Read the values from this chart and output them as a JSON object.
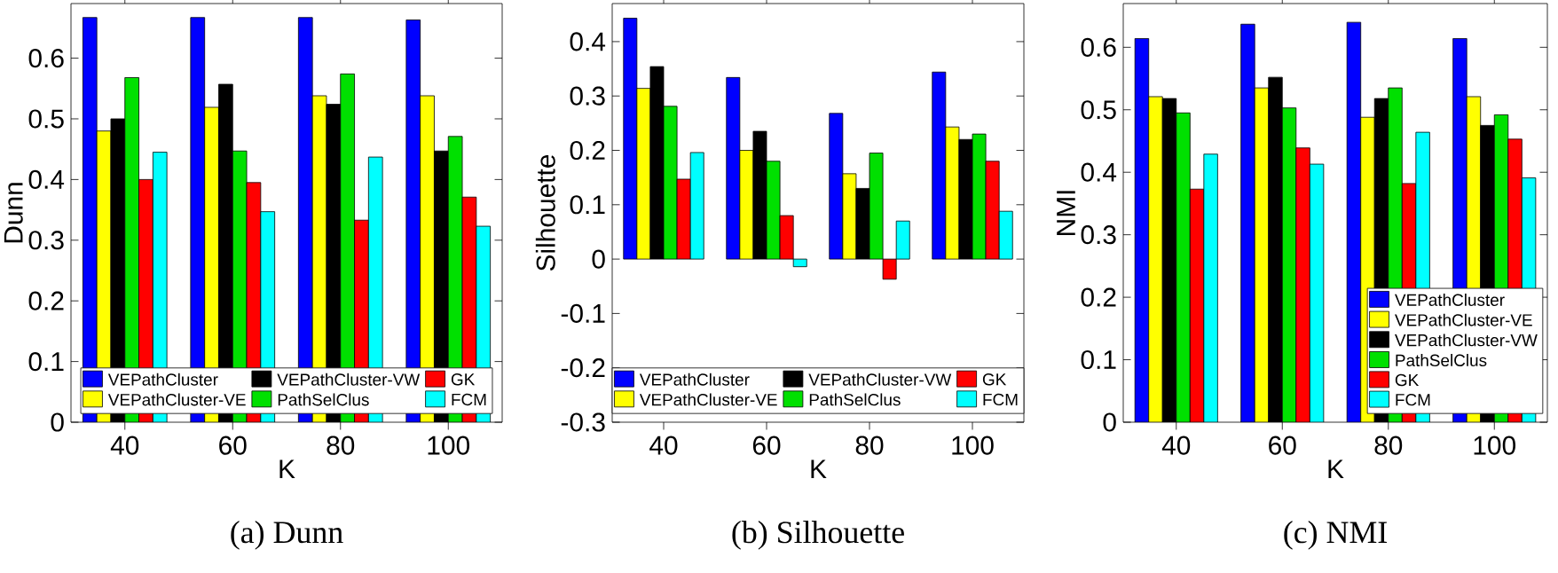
{
  "chart_data": [
    {
      "type": "bar",
      "categories": [
        "40",
        "60",
        "80",
        "100"
      ],
      "xlabel": "K",
      "ylabel": "Dunn",
      "ylim": [
        0,
        0.69
      ],
      "yticks": [
        0,
        0.1,
        0.2,
        0.3,
        0.4,
        0.5,
        0.6
      ],
      "legend": "bottom",
      "annotations": [
        "(a) Dunn"
      ],
      "series": [
        {
          "name": "VEPathCluster",
          "color": "#0000ff",
          "values": [
            0.667,
            0.667,
            0.667,
            0.663
          ]
        },
        {
          "name": "VEPathCluster-VE",
          "color": "#ffff00",
          "values": [
            0.48,
            0.519,
            0.538,
            0.538
          ]
        },
        {
          "name": "VEPathCluster-VW",
          "color": "#000000",
          "values": [
            0.5,
            0.557,
            0.524,
            0.447
          ]
        },
        {
          "name": "PathSelClus",
          "color": "#00e000",
          "values": [
            0.568,
            0.447,
            0.574,
            0.471
          ]
        },
        {
          "name": "GK",
          "color": "#ff0000",
          "values": [
            0.4,
            0.395,
            0.333,
            0.371
          ]
        },
        {
          "name": "FCM",
          "color": "#00ffff",
          "values": [
            0.445,
            0.347,
            0.437,
            0.323
          ]
        }
      ]
    },
    {
      "type": "bar",
      "categories": [
        "40",
        "60",
        "80",
        "100"
      ],
      "xlabel": "K",
      "ylabel": "Silhouette",
      "ylim": [
        -0.3,
        0.47
      ],
      "yticks": [
        -0.3,
        -0.2,
        -0.1,
        0,
        0.1,
        0.2,
        0.3,
        0.4
      ],
      "legend": "bottom",
      "annotations": [
        "(b) Silhouette"
      ],
      "series": [
        {
          "name": "VEPathCluster",
          "color": "#0000ff",
          "values": [
            0.443,
            0.334,
            0.268,
            0.344
          ]
        },
        {
          "name": "VEPathCluster-VE",
          "color": "#ffff00",
          "values": [
            0.314,
            0.2,
            0.157,
            0.243
          ]
        },
        {
          "name": "VEPathCluster-VW",
          "color": "#000000",
          "values": [
            0.354,
            0.235,
            0.13,
            0.22
          ]
        },
        {
          "name": "PathSelClus",
          "color": "#00e000",
          "values": [
            0.281,
            0.18,
            0.195,
            0.23
          ]
        },
        {
          "name": "GK",
          "color": "#ff0000",
          "values": [
            0.147,
            0.08,
            -0.037,
            0.18
          ]
        },
        {
          "name": "FCM",
          "color": "#00ffff",
          "values": [
            0.196,
            -0.014,
            0.07,
            0.088
          ]
        }
      ]
    },
    {
      "type": "bar",
      "categories": [
        "40",
        "60",
        "80",
        "100"
      ],
      "xlabel": "K",
      "ylabel": "NMI",
      "ylim": [
        0,
        0.67
      ],
      "yticks": [
        0,
        0.1,
        0.2,
        0.3,
        0.4,
        0.5,
        0.6
      ],
      "legend": "bottom right",
      "annotations": [
        "(c) NMI"
      ],
      "series": [
        {
          "name": "VEPathCluster",
          "color": "#0000ff",
          "values": [
            0.614,
            0.637,
            0.64,
            0.614
          ]
        },
        {
          "name": "VEPathCluster-VE",
          "color": "#ffff00",
          "values": [
            0.521,
            0.535,
            0.488,
            0.521
          ]
        },
        {
          "name": "VEPathCluster-VW",
          "color": "#000000",
          "values": [
            0.518,
            0.552,
            0.518,
            0.475
          ]
        },
        {
          "name": "PathSelClus",
          "color": "#00e000",
          "values": [
            0.495,
            0.503,
            0.535,
            0.492
          ]
        },
        {
          "name": "GK",
          "color": "#ff0000",
          "values": [
            0.373,
            0.439,
            0.382,
            0.453
          ]
        },
        {
          "name": "FCM",
          "color": "#00ffff",
          "values": [
            0.429,
            0.413,
            0.464,
            0.391
          ]
        }
      ]
    }
  ]
}
